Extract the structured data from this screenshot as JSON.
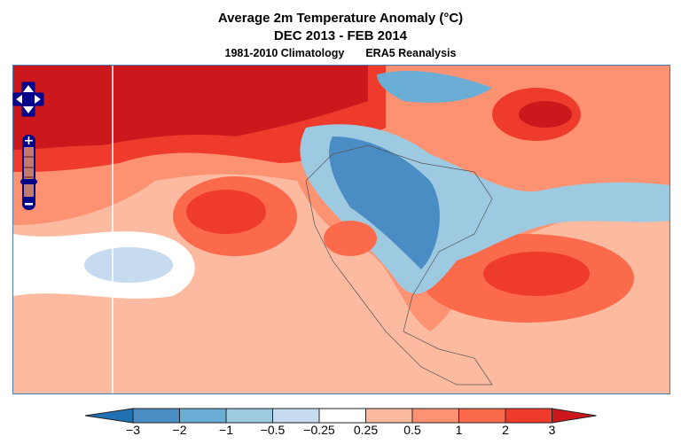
{
  "title": {
    "line1": "Average 2m Temperature Anomaly (°C)",
    "line2": "DEC 2013 - FEB 2014",
    "climatology": "1981-2010 Climatology",
    "dataset": "ERA5 Reanalysis"
  },
  "colorbar": {
    "labels": [
      "−3",
      "−2",
      "−1",
      "−0.5",
      "−0.25",
      "0.25",
      "0.5",
      "1",
      "2",
      "3"
    ],
    "colors": [
      "#4a8dc4",
      "#6aaed6",
      "#9ecae1",
      "#c6dbef",
      "#ffffff",
      "#fcbba1",
      "#fc9272",
      "#fb6a4a",
      "#ef3b2c"
    ],
    "under": "#2171b5",
    "over": "#cb181d"
  },
  "nav": {
    "icons": [
      "pan-up-icon",
      "pan-left-icon",
      "pan-right-icon",
      "pan-down-icon",
      "zoom-in-icon",
      "zoom-out-icon"
    ],
    "color": "#00008b"
  }
}
